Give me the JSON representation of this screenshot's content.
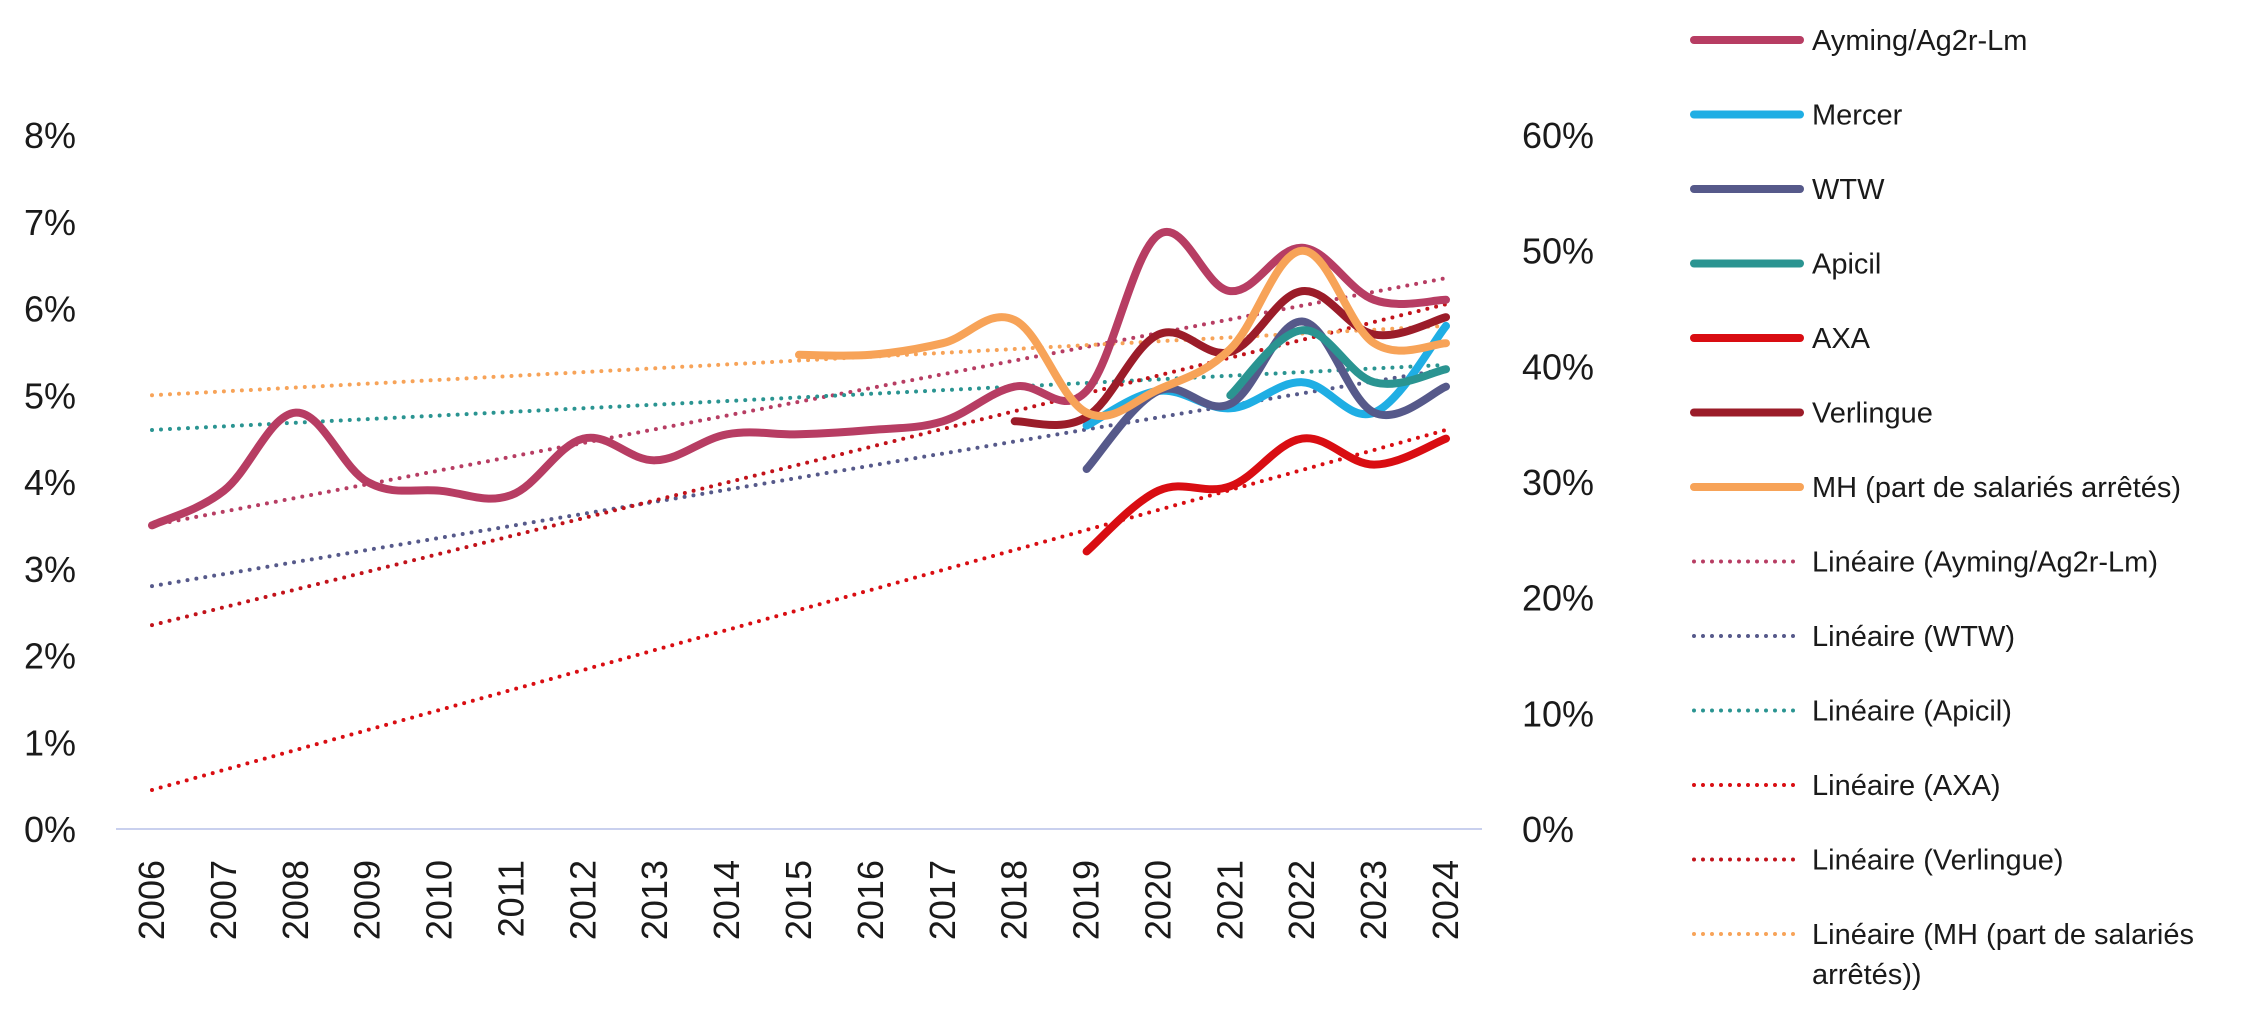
{
  "chart_data": {
    "type": "line",
    "title": "",
    "xlabel": "",
    "ylabel": "",
    "categories": [
      "2006",
      "2007",
      "2008",
      "2009",
      "2010",
      "2011",
      "2012",
      "2013",
      "2014",
      "2015",
      "2016",
      "2017",
      "2018",
      "2019",
      "2020",
      "2021",
      "2022",
      "2023",
      "2024"
    ],
    "y_left": {
      "min": 0,
      "max": 8,
      "ticks": [
        "0%",
        "1%",
        "2%",
        "3%",
        "4%",
        "5%",
        "6%",
        "7%",
        "8%"
      ]
    },
    "y_right": {
      "min": 0,
      "max": 60,
      "ticks": [
        "0%",
        "10%",
        "20%",
        "30%",
        "40%",
        "50%",
        "60%"
      ]
    },
    "grid": false,
    "legend_position": "right",
    "series": [
      {
        "name": "Ayming/Ag2r-Lm",
        "axis": "left",
        "color": "#B73D63",
        "style": "solid",
        "smooth": true,
        "values": [
          3.5,
          3.9,
          4.8,
          4.0,
          3.9,
          3.85,
          4.5,
          4.25,
          4.55,
          4.55,
          4.6,
          4.7,
          5.1,
          5.05,
          6.85,
          6.2,
          6.7,
          6.1,
          6.1
        ]
      },
      {
        "name": "Mercer",
        "axis": "left",
        "color": "#1FAEE4",
        "style": "solid",
        "smooth": true,
        "values": [
          null,
          null,
          null,
          null,
          null,
          null,
          null,
          null,
          null,
          null,
          null,
          null,
          null,
          4.65,
          5.05,
          4.85,
          5.15,
          4.8,
          5.8
        ]
      },
      {
        "name": "WTW",
        "axis": "left",
        "color": "#56598A",
        "style": "solid",
        "smooth": true,
        "values": [
          null,
          null,
          null,
          null,
          null,
          null,
          null,
          null,
          null,
          null,
          null,
          null,
          null,
          4.15,
          5.05,
          4.9,
          5.85,
          4.8,
          5.1
        ]
      },
      {
        "name": "Apicil",
        "axis": "left",
        "color": "#2A9491",
        "style": "solid",
        "smooth": true,
        "values": [
          null,
          null,
          null,
          null,
          null,
          null,
          null,
          null,
          null,
          null,
          null,
          null,
          null,
          null,
          null,
          5.0,
          5.75,
          5.15,
          5.3
        ]
      },
      {
        "name": "AXA",
        "axis": "left",
        "color": "#D90D12",
        "style": "solid",
        "smooth": true,
        "values": [
          null,
          null,
          null,
          null,
          null,
          null,
          null,
          null,
          null,
          null,
          null,
          null,
          null,
          3.2,
          3.9,
          3.95,
          4.5,
          4.2,
          4.5
        ]
      },
      {
        "name": "Verlingue",
        "axis": "left",
        "color": "#9B1C29",
        "style": "solid",
        "smooth": true,
        "values": [
          null,
          null,
          null,
          null,
          null,
          null,
          null,
          null,
          null,
          null,
          null,
          null,
          4.7,
          4.75,
          5.7,
          5.5,
          6.2,
          5.7,
          5.9
        ]
      },
      {
        "name": "MH (part de salariés arrêtés)",
        "axis": "right",
        "color": "#F7A358",
        "style": "solid",
        "smooth": true,
        "values": [
          null,
          null,
          null,
          null,
          null,
          null,
          null,
          null,
          null,
          41,
          41,
          42,
          44,
          36,
          38,
          41.5,
          50,
          42,
          42
        ]
      },
      {
        "name": "Linéaire (Ayming/Ag2r-Lm)",
        "axis": "left",
        "color": "#B73D63",
        "style": "dotted",
        "values_ends": [
          3.5,
          6.35
        ]
      },
      {
        "name": "Linéaire (WTW)",
        "axis": "left",
        "color": "#56598A",
        "style": "dotted",
        "values_ends": [
          2.8,
          5.3
        ]
      },
      {
        "name": "Linéaire (Apicil)",
        "axis": "left",
        "color": "#2A9491",
        "style": "dotted",
        "values_ends": [
          4.6,
          5.35
        ]
      },
      {
        "name": "Linéaire (AXA)",
        "axis": "left",
        "color": "#D90D12",
        "style": "dotted",
        "values_ends": [
          0.45,
          4.6
        ]
      },
      {
        "name": "Linéaire (Verlingue)",
        "axis": "left",
        "color": "#C2121A",
        "style": "dotted",
        "values_ends": [
          2.35,
          6.05
        ]
      },
      {
        "name": "Linéaire (MH (part de salariés arrêtés))",
        "axis": "right",
        "color": "#F7A358",
        "style": "dotted",
        "values_ends": [
          37.5,
          43.5
        ]
      }
    ],
    "legend_order": [
      "Ayming/Ag2r-Lm",
      "Mercer",
      "WTW",
      "Apicil",
      "AXA",
      "Verlingue",
      "MH (part de salariés arrêtés)",
      "Linéaire (Ayming/Ag2r-Lm)",
      "Linéaire (WTW)",
      "Linéaire (Apicil)",
      "Linéaire (AXA)",
      "Linéaire (Verlingue)",
      "Linéaire (MH (part de salariés arrêtés))"
    ],
    "legend_wrap": {
      "Linéaire (MH (part de salariés arrêtés))": [
        "Linéaire (MH (part de salariés",
        "arrêtés))"
      ]
    },
    "axis_line_color": "#C9D0EE"
  }
}
